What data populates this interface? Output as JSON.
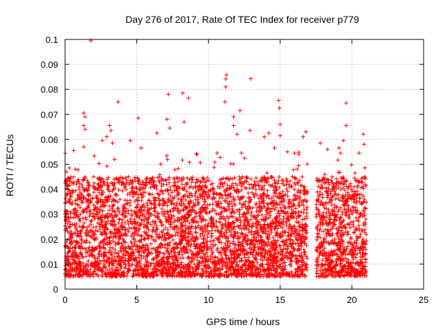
{
  "chart_data": {
    "type": "scatter",
    "title": "Day 276 of 2017, Rate Of TEC Index for receiver p779",
    "xlabel": "GPS time / hours",
    "ylabel": "ROTI / TECUs",
    "xlim": [
      0,
      25
    ],
    "ylim": [
      0,
      0.1
    ],
    "x_ticks": [
      0,
      5,
      10,
      15,
      20,
      25
    ],
    "y_ticks": [
      0,
      0.01,
      0.02,
      0.03,
      0.04,
      0.05,
      0.06,
      0.07,
      0.08,
      0.09,
      0.1
    ],
    "x_tick_labels": [
      "0",
      "5",
      "10",
      "15",
      "20",
      "25"
    ],
    "y_tick_labels": [
      "0",
      "0.01",
      "0.02",
      "0.03",
      "0.04",
      "0.05",
      "0.06",
      "0.07",
      "0.08",
      "0.09",
      "0.1"
    ],
    "grid": true,
    "marker": "+",
    "color": "#ff0000",
    "coverage": [
      [
        0,
        16.9
      ],
      [
        17.5,
        21
      ]
    ],
    "typical_range": [
      0.005,
      0.045
    ],
    "series": [
      {
        "values": [
          [
            1.8,
            0.0995
          ],
          [
            11.25,
            0.0858
          ],
          [
            11.2,
            0.0842
          ],
          [
            12.95,
            0.0843
          ],
          [
            11.2,
            0.081
          ],
          [
            8.2,
            0.0785
          ],
          [
            7.2,
            0.078
          ],
          [
            8.6,
            0.0765
          ],
          [
            3.7,
            0.075
          ],
          [
            11.15,
            0.075
          ],
          [
            14.9,
            0.0755
          ],
          [
            19.6,
            0.0745
          ],
          [
            1.3,
            0.0705
          ],
          [
            1.4,
            0.069
          ],
          [
            5.1,
            0.0685
          ],
          [
            7.1,
            0.068
          ],
          [
            8.3,
            0.067
          ],
          [
            11.75,
            0.069
          ],
          [
            14.95,
            0.0725
          ],
          [
            12.2,
            0.0715
          ],
          [
            1.3,
            0.0655
          ],
          [
            1.4,
            0.064
          ],
          [
            3.1,
            0.0655
          ],
          [
            3.2,
            0.0635
          ],
          [
            7.3,
            0.0645
          ],
          [
            11.75,
            0.0655
          ],
          [
            15.0,
            0.066
          ],
          [
            15.0,
            0.0615
          ],
          [
            16.8,
            0.063
          ],
          [
            19.6,
            0.0655
          ],
          [
            12.0,
            0.062
          ],
          [
            12.9,
            0.0635
          ],
          [
            14.2,
            0.0625
          ],
          [
            13.9,
            0.061
          ],
          [
            6.4,
            0.0625
          ],
          [
            16.6,
            0.061
          ],
          [
            17.8,
            0.0585
          ],
          [
            18.3,
            0.056
          ],
          [
            19.4,
            0.0595
          ],
          [
            20.8,
            0.062
          ],
          [
            20.85,
            0.058
          ],
          [
            0.6,
            0.0555
          ],
          [
            2.6,
            0.0595
          ],
          [
            4.55,
            0.0595
          ],
          [
            5.3,
            0.0565
          ],
          [
            1.3,
            0.057
          ],
          [
            2.9,
            0.061
          ],
          [
            3.3,
            0.0585
          ],
          [
            9.2,
            0.054
          ],
          [
            10.6,
            0.0545
          ],
          [
            12.3,
            0.0545
          ],
          [
            14.6,
            0.0565
          ],
          [
            15.5,
            0.055
          ],
          [
            16.0,
            0.0545
          ],
          [
            16.3,
            0.054
          ],
          [
            19.1,
            0.0565
          ],
          [
            19.2,
            0.0545
          ],
          [
            20.5,
            0.0545
          ],
          [
            0.1,
            0.047
          ],
          [
            0.3,
            0.0485
          ]
        ]
      }
    ]
  }
}
